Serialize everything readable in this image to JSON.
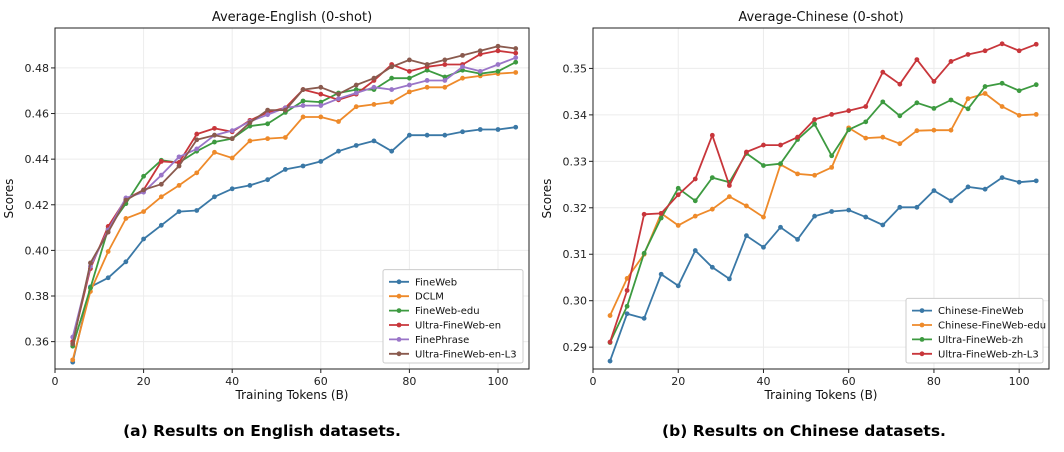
{
  "captions": {
    "left": "(a) Results on English datasets.",
    "right": "(b) Results on Chinese datasets."
  },
  "chart_data": [
    {
      "type": "line",
      "title": "Average-English (0-shot)",
      "xlabel": "Training Tokens (B)",
      "ylabel": "Scores",
      "xlim": [
        0,
        107
      ],
      "ylim": [
        0.348,
        0.4975
      ],
      "xticks": [
        0,
        20,
        40,
        60,
        80,
        100
      ],
      "yticks": [
        0.36,
        0.38,
        0.4,
        0.42,
        0.44,
        0.46,
        0.48
      ],
      "ytick_labels": [
        "0.36",
        "0.38",
        "0.40",
        "0.42",
        "0.44",
        "0.46",
        "0.48"
      ],
      "grid": true,
      "legend_position": "bottom-right",
      "x": [
        4,
        8,
        12,
        16,
        20,
        24,
        28,
        32,
        36,
        40,
        44,
        48,
        52,
        56,
        60,
        64,
        68,
        72,
        76,
        80,
        84,
        88,
        92,
        96,
        100,
        104
      ],
      "series": [
        {
          "name": "FineWeb",
          "color": "#3a78a6",
          "values": [
            0.351,
            0.384,
            0.388,
            0.395,
            0.405,
            0.411,
            0.417,
            0.4175,
            0.4235,
            0.427,
            0.4285,
            0.431,
            0.4355,
            0.437,
            0.439,
            0.4435,
            0.446,
            0.448,
            0.4435,
            0.4505,
            0.4505,
            0.4505,
            0.452,
            0.453,
            0.453,
            0.454
          ]
        },
        {
          "name": "DCLM",
          "color": "#ee8a2a",
          "values": [
            0.352,
            0.382,
            0.3995,
            0.414,
            0.417,
            0.4235,
            0.4285,
            0.434,
            0.443,
            0.4405,
            0.448,
            0.449,
            0.4495,
            0.4585,
            0.4585,
            0.4565,
            0.463,
            0.464,
            0.465,
            0.4695,
            0.4715,
            0.4715,
            0.4755,
            0.4765,
            0.4775,
            0.478
          ]
        },
        {
          "name": "FineWeb-edu",
          "color": "#3d9a40",
          "values": [
            0.358,
            0.3835,
            0.4095,
            0.4205,
            0.4325,
            0.4395,
            0.4385,
            0.4435,
            0.4475,
            0.449,
            0.4545,
            0.4555,
            0.4605,
            0.4655,
            0.465,
            0.469,
            0.4705,
            0.4705,
            0.4755,
            0.4755,
            0.479,
            0.476,
            0.479,
            0.4775,
            0.4785,
            0.4825
          ]
        },
        {
          "name": "Ultra-FineWeb-en",
          "color": "#c8363b",
          "values": [
            0.36,
            0.392,
            0.4105,
            0.4225,
            0.4265,
            0.439,
            0.4385,
            0.451,
            0.4535,
            0.452,
            0.457,
            0.4605,
            0.4625,
            0.4705,
            0.4685,
            0.466,
            0.4685,
            0.4745,
            0.4815,
            0.4785,
            0.4805,
            0.4815,
            0.4815,
            0.486,
            0.4875,
            0.4865
          ]
        },
        {
          "name": "FinePhrase",
          "color": "#9a75c8",
          "values": [
            0.362,
            0.393,
            0.409,
            0.423,
            0.4255,
            0.433,
            0.441,
            0.4445,
            0.4505,
            0.4525,
            0.4565,
            0.4595,
            0.4625,
            0.4635,
            0.4635,
            0.4665,
            0.469,
            0.4715,
            0.4705,
            0.4725,
            0.4745,
            0.4745,
            0.4805,
            0.4785,
            0.4815,
            0.4845
          ]
        },
        {
          "name": "Ultra-FineWeb-en-L3",
          "color": "#8a5a4e",
          "values": [
            0.359,
            0.3945,
            0.408,
            0.422,
            0.4265,
            0.429,
            0.437,
            0.4485,
            0.4505,
            0.449,
            0.456,
            0.4615,
            0.4615,
            0.4705,
            0.4715,
            0.4685,
            0.4725,
            0.4755,
            0.4805,
            0.4835,
            0.4815,
            0.4835,
            0.4855,
            0.4875,
            0.4895,
            0.4885
          ]
        }
      ]
    },
    {
      "type": "line",
      "title": "Average-Chinese (0-shot)",
      "xlabel": "Training Tokens (B)",
      "ylabel": "Scores",
      "xlim": [
        0,
        107
      ],
      "ylim": [
        0.2853,
        0.3587
      ],
      "xticks": [
        0,
        20,
        40,
        60,
        80,
        100
      ],
      "yticks": [
        0.29,
        0.3,
        0.31,
        0.32,
        0.33,
        0.34,
        0.35
      ],
      "ytick_labels": [
        "0.29",
        "0.30",
        "0.31",
        "0.32",
        "0.33",
        "0.34",
        "0.35"
      ],
      "grid": true,
      "legend_position": "bottom-right",
      "x": [
        4,
        8,
        12,
        16,
        20,
        24,
        28,
        32,
        36,
        40,
        44,
        48,
        52,
        56,
        60,
        64,
        68,
        72,
        76,
        80,
        84,
        88,
        92,
        96,
        100,
        104
      ],
      "series": [
        {
          "name": "Chinese-FineWeb",
          "color": "#3a78a6",
          "values": [
            0.287,
            0.2972,
            0.2962,
            0.3057,
            0.3032,
            0.3108,
            0.3072,
            0.3047,
            0.314,
            0.3115,
            0.3158,
            0.3132,
            0.3182,
            0.3192,
            0.3195,
            0.318,
            0.3163,
            0.3201,
            0.3201,
            0.3237,
            0.3215,
            0.3245,
            0.324,
            0.3265,
            0.3255,
            0.3258
          ]
        },
        {
          "name": "Chinese-FineWeb-edu",
          "color": "#ee8a2a",
          "values": [
            0.2968,
            0.3048,
            0.31,
            0.3188,
            0.3162,
            0.3182,
            0.3197,
            0.3224,
            0.3204,
            0.318,
            0.3293,
            0.3273,
            0.327,
            0.3287,
            0.3372,
            0.335,
            0.3352,
            0.3338,
            0.3366,
            0.3367,
            0.3367,
            0.3435,
            0.3446,
            0.3418,
            0.3399,
            0.3401
          ]
        },
        {
          "name": "Ultra-FineWeb-zh",
          "color": "#3d9a40",
          "values": [
            0.291,
            0.2988,
            0.3102,
            0.3178,
            0.3242,
            0.3215,
            0.3265,
            0.3255,
            0.3317,
            0.3291,
            0.3295,
            0.3347,
            0.338,
            0.3312,
            0.3368,
            0.3385,
            0.3428,
            0.3398,
            0.3426,
            0.3414,
            0.3432,
            0.3413,
            0.3461,
            0.3468,
            0.3452,
            0.3465
          ]
        },
        {
          "name": "Ultra-FineWeb-zh-L3",
          "color": "#c8363b",
          "values": [
            0.2911,
            0.3022,
            0.3186,
            0.3188,
            0.3228,
            0.3262,
            0.3356,
            0.3248,
            0.332,
            0.3335,
            0.3335,
            0.3352,
            0.339,
            0.3401,
            0.3409,
            0.3418,
            0.3492,
            0.3466,
            0.3519,
            0.3472,
            0.3515,
            0.353,
            0.3538,
            0.3553,
            0.3538,
            0.3552
          ]
        }
      ]
    }
  ]
}
